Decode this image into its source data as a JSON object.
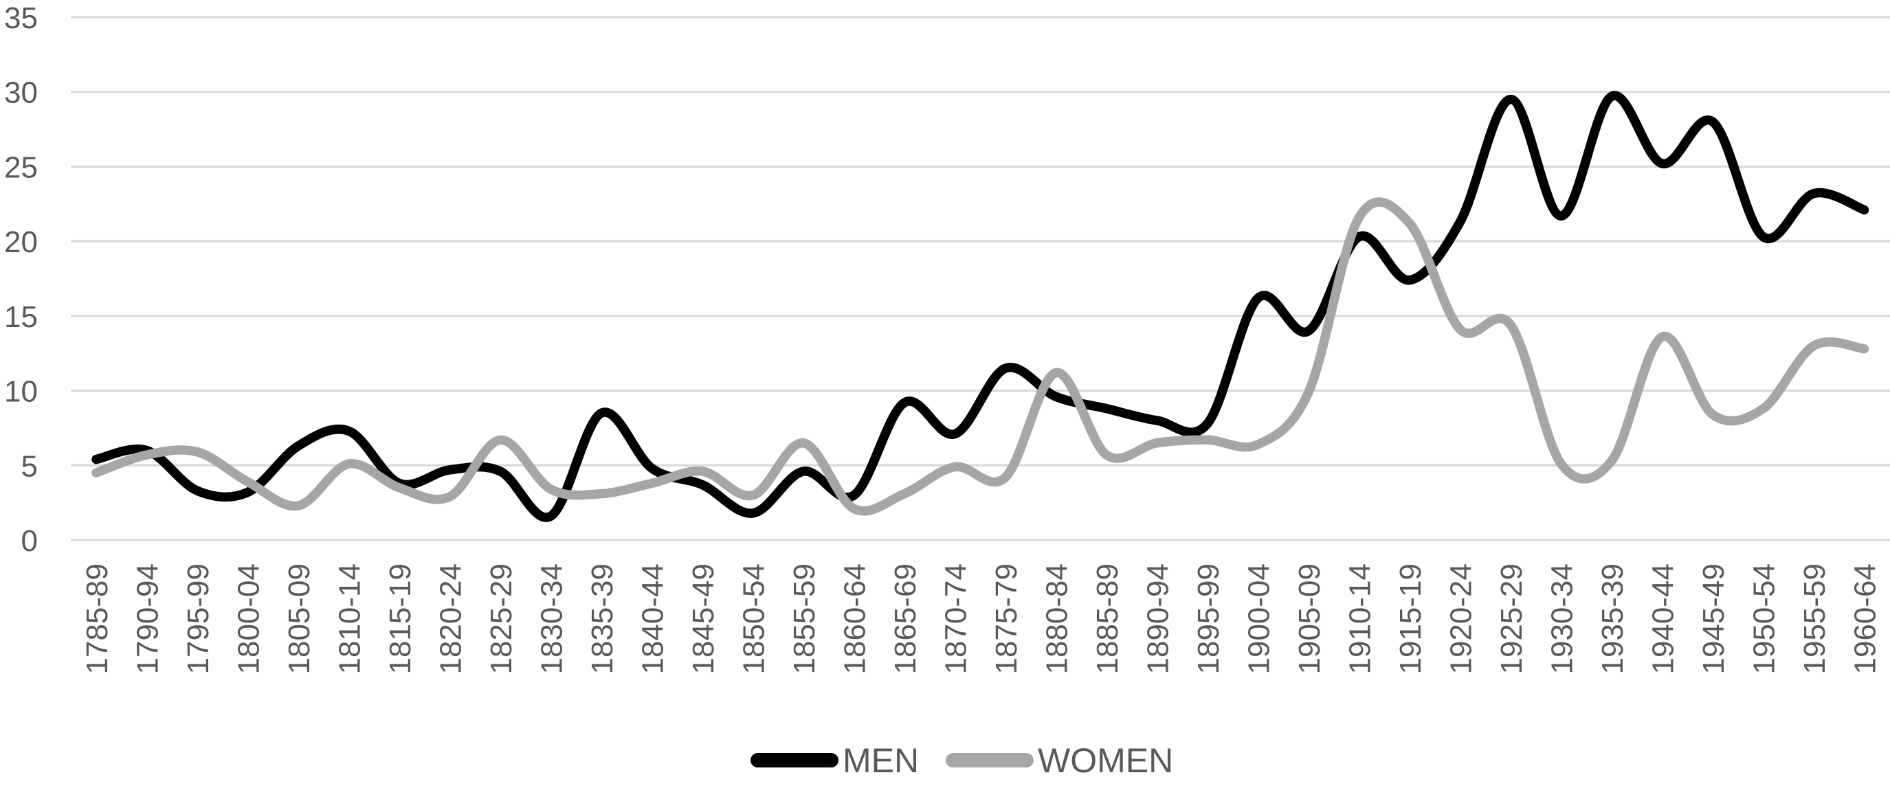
{
  "chart_data": {
    "type": "line",
    "title": "",
    "xlabel": "",
    "ylabel": "",
    "categories": [
      "1785-89",
      "1790-94",
      "1795-99",
      "1800-04",
      "1805-09",
      "1810-14",
      "1815-19",
      "1820-24",
      "1825-29",
      "1830-34",
      "1835-39",
      "1840-44",
      "1845-49",
      "1850-54",
      "1855-59",
      "1860-64",
      "1865-69",
      "1870-74",
      "1875-79",
      "1880-84",
      "1885-89",
      "1890-94",
      "1895-99",
      "1900-04",
      "1905-09",
      "1910-14",
      "1915-19",
      "1920-24",
      "1925-29",
      "1930-34",
      "1935-39",
      "1940-44",
      "1945-49",
      "1950-54",
      "1955-59",
      "1960-64"
    ],
    "series": [
      {
        "name": "MEN",
        "color": "#000000",
        "values": [
          5.4,
          6.0,
          3.3,
          3.2,
          6.3,
          7.3,
          3.8,
          4.7,
          4.6,
          1.6,
          8.5,
          4.8,
          3.7,
          1.8,
          4.6,
          3.0,
          9.2,
          7.1,
          11.5,
          9.6,
          8.8,
          8.0,
          7.8,
          16.2,
          14.0,
          20.3,
          17.4,
          21.3,
          29.5,
          21.7,
          29.7,
          25.2,
          28.0,
          20.3,
          23.2,
          22.1
        ]
      },
      {
        "name": "WOMEN",
        "color": "#a6a6a6",
        "values": [
          4.5,
          5.7,
          5.9,
          3.9,
          2.3,
          5.1,
          3.5,
          2.9,
          6.7,
          3.4,
          3.1,
          3.8,
          4.6,
          3.0,
          6.5,
          2.1,
          3.1,
          4.9,
          4.2,
          11.2,
          5.7,
          6.5,
          6.7,
          6.4,
          9.9,
          21.6,
          21.2,
          14.1,
          14.4,
          5.1,
          5.3,
          13.6,
          8.4,
          8.8,
          13.0,
          12.8
        ]
      }
    ],
    "ylim": [
      0,
      35
    ],
    "yticks": [
      0,
      5,
      10,
      15,
      20,
      25,
      30,
      35
    ],
    "grid": true,
    "line_smoothing": true,
    "legend_position": "bottom-center"
  },
  "legend": {
    "men_label": "MEN",
    "women_label": "WOMEN"
  },
  "colors": {
    "men_line": "#000000",
    "women_line": "#a6a6a6",
    "gridline": "#d9d9d9",
    "axis_label": "#595959",
    "legend_text": "#595959",
    "background": "#ffffff"
  }
}
